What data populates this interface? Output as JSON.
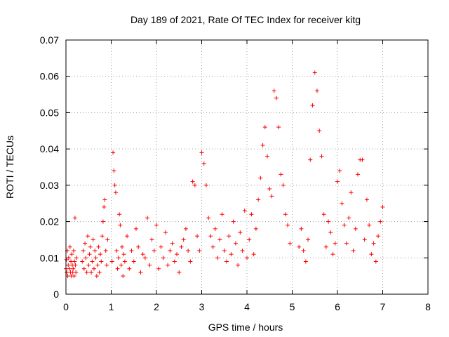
{
  "chart_data": {
    "type": "scatter",
    "title": "Day 189 of 2021, Rate Of TEC Index for receiver kitg",
    "xlabel": "GPS time / hours",
    "ylabel": "ROTI / TECUs",
    "xlim": [
      0,
      8
    ],
    "ylim": [
      0,
      0.07
    ],
    "xticks": [
      0,
      1,
      2,
      3,
      4,
      5,
      6,
      7,
      8
    ],
    "xtick_labels": [
      "0",
      "1",
      "2",
      "3",
      "4",
      "5",
      "6",
      "7",
      "8"
    ],
    "yticks": [
      0,
      0.01,
      0.02,
      0.03,
      0.04,
      0.05,
      0.06,
      0.07
    ],
    "ytick_labels": [
      "0",
      "0.01",
      "0.02",
      "0.03",
      "0.04",
      "0.05",
      "0.06",
      "0.07"
    ],
    "grid": true,
    "marker": "+",
    "color": "#ff0000",
    "series": [
      {
        "name": "ROTI",
        "x": [
          0.0,
          0.01,
          0.02,
          0.03,
          0.04,
          0.05,
          0.06,
          0.08,
          0.09,
          0.1,
          0.11,
          0.12,
          0.13,
          0.14,
          0.15,
          0.16,
          0.17,
          0.18,
          0.19,
          0.2,
          0.21,
          0.22,
          0.23,
          0.36,
          0.38,
          0.4,
          0.42,
          0.44,
          0.46,
          0.48,
          0.5,
          0.52,
          0.54,
          0.56,
          0.58,
          0.6,
          0.62,
          0.64,
          0.66,
          0.68,
          0.7,
          0.72,
          0.74,
          0.76,
          0.78,
          0.8,
          0.82,
          0.84,
          0.86,
          0.88,
          0.9,
          0.92,
          1.02,
          1.04,
          1.06,
          1.08,
          1.1,
          1.12,
          1.14,
          1.16,
          1.18,
          1.2,
          1.22,
          1.24,
          1.26,
          1.28,
          1.3,
          1.35,
          1.4,
          1.45,
          1.5,
          1.55,
          1.6,
          1.65,
          1.7,
          1.75,
          1.8,
          1.85,
          1.9,
          1.95,
          2.0,
          2.05,
          2.1,
          2.15,
          2.2,
          2.25,
          2.3,
          2.35,
          2.4,
          2.45,
          2.5,
          2.55,
          2.6,
          2.65,
          2.7,
          2.75,
          2.8,
          2.85,
          2.9,
          2.95,
          3.0,
          3.05,
          3.1,
          3.15,
          3.2,
          3.25,
          3.3,
          3.35,
          3.4,
          3.45,
          3.5,
          3.55,
          3.6,
          3.65,
          3.7,
          3.75,
          3.8,
          3.85,
          3.9,
          3.95,
          4.0,
          4.05,
          4.1,
          4.15,
          4.2,
          4.25,
          4.3,
          4.35,
          4.4,
          4.45,
          4.5,
          4.55,
          4.6,
          4.65,
          4.7,
          4.75,
          4.8,
          4.85,
          4.9,
          4.95,
          5.15,
          5.2,
          5.25,
          5.3,
          5.35,
          5.4,
          5.45,
          5.5,
          5.55,
          5.6,
          5.65,
          5.7,
          5.75,
          5.8,
          5.85,
          5.9,
          5.95,
          6.0,
          6.05,
          6.1,
          6.15,
          6.2,
          6.25,
          6.3,
          6.35,
          6.4,
          6.45,
          6.5,
          6.55,
          6.6,
          6.65,
          6.7,
          6.75,
          6.8,
          6.85,
          6.9,
          6.95,
          7.0
        ],
        "y": [
          0.007,
          0.0095,
          0.006,
          0.012,
          0.005,
          0.008,
          0.01,
          0.007,
          0.013,
          0.006,
          0.009,
          0.005,
          0.011,
          0.008,
          0.006,
          0.007,
          0.012,
          0.005,
          0.009,
          0.021,
          0.008,
          0.006,
          0.01,
          0.009,
          0.012,
          0.007,
          0.014,
          0.01,
          0.006,
          0.016,
          0.008,
          0.011,
          0.013,
          0.006,
          0.009,
          0.015,
          0.007,
          0.012,
          0.01,
          0.005,
          0.008,
          0.013,
          0.006,
          0.011,
          0.009,
          0.016,
          0.02,
          0.024,
          0.026,
          0.012,
          0.008,
          0.015,
          0.009,
          0.039,
          0.034,
          0.03,
          0.028,
          0.012,
          0.007,
          0.01,
          0.022,
          0.019,
          0.008,
          0.013,
          0.005,
          0.011,
          0.009,
          0.016,
          0.007,
          0.012,
          0.009,
          0.018,
          0.013,
          0.006,
          0.011,
          0.01,
          0.021,
          0.008,
          0.015,
          0.012,
          0.019,
          0.007,
          0.013,
          0.01,
          0.017,
          0.008,
          0.012,
          0.014,
          0.009,
          0.011,
          0.006,
          0.013,
          0.015,
          0.018,
          0.012,
          0.009,
          0.031,
          0.03,
          0.016,
          0.012,
          0.039,
          0.036,
          0.03,
          0.021,
          0.016,
          0.013,
          0.018,
          0.01,
          0.015,
          0.022,
          0.012,
          0.009,
          0.016,
          0.011,
          0.02,
          0.014,
          0.008,
          0.017,
          0.012,
          0.023,
          0.01,
          0.015,
          0.022,
          0.011,
          0.018,
          0.026,
          0.032,
          0.041,
          0.046,
          0.038,
          0.029,
          0.027,
          0.056,
          0.054,
          0.046,
          0.033,
          0.03,
          0.022,
          0.019,
          0.014,
          0.013,
          0.018,
          0.012,
          0.009,
          0.015,
          0.037,
          0.052,
          0.061,
          0.056,
          0.045,
          0.038,
          0.022,
          0.013,
          0.02,
          0.017,
          0.011,
          0.014,
          0.031,
          0.034,
          0.025,
          0.019,
          0.014,
          0.021,
          0.028,
          0.012,
          0.018,
          0.033,
          0.037,
          0.037,
          0.015,
          0.026,
          0.019,
          0.011,
          0.014,
          0.009,
          0.016,
          0.02,
          0.024
        ]
      }
    ]
  }
}
